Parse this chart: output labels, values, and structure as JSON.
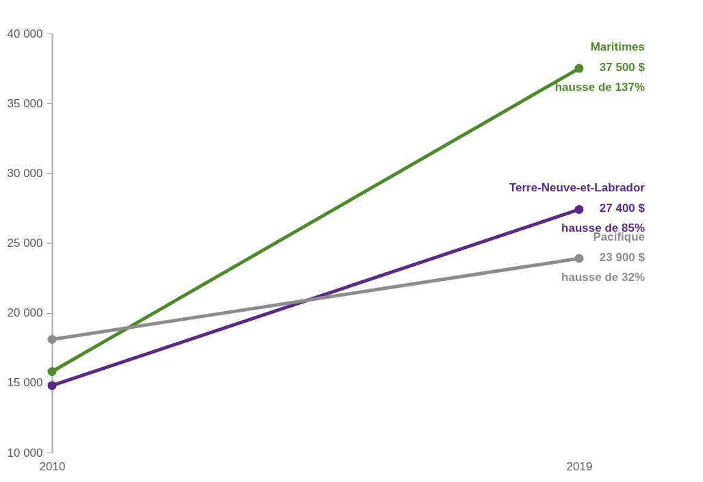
{
  "chart_data": {
    "type": "line",
    "categories": [
      "2010",
      "2019"
    ],
    "series": [
      {
        "name": "Maritimes",
        "color": "#4e8a2b",
        "values": [
          15800,
          37500
        ],
        "value_labels": [
          null,
          "37 500 $"
        ]
      },
      {
        "name": "Terre-Neuve-et-Labrador",
        "color": "#5b2a86",
        "values": [
          14800,
          27400
        ],
        "value_labels": [
          null,
          "27 400 $"
        ]
      },
      {
        "name": "Pacifique",
        "color": "#8c8c8c",
        "values": [
          18100,
          23900
        ],
        "value_labels": [
          null,
          "23 900 $"
        ]
      }
    ],
    "annotations": [
      "hausse de 137%",
      "hausse de 85%",
      "hausse de 32%"
    ],
    "ylim": [
      10000,
      40000
    ],
    "yticks": [
      10000,
      15000,
      20000,
      25000,
      30000,
      35000,
      40000
    ],
    "grid": false,
    "legend": false,
    "marker": "circle",
    "line_style": "solid"
  }
}
